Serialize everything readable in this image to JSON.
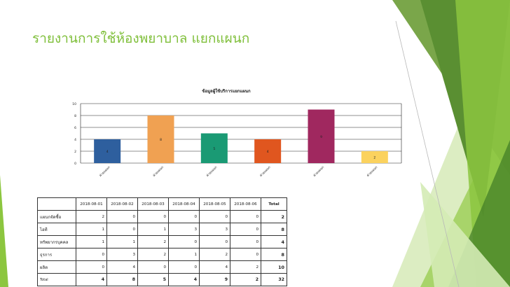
{
  "slide": {
    "title": "รายงานการใช้ห้องพยาบาล แยกแผนก"
  },
  "chart_data": {
    "type": "bar",
    "title": "ข้อมูลผู้ใช้บริการแยกแผนก",
    "categories": [
      "ฝ่ายแผนก",
      "ฝ่ายแผนก",
      "ฝ่ายแผนก",
      "ฝ่ายแผนก",
      "ฝ่ายแผนก",
      "ฝ่ายแผนก"
    ],
    "values": [
      4,
      8,
      5,
      4,
      9,
      2
    ],
    "colors": [
      "#2e5f9e",
      "#f0a152",
      "#1a9a74",
      "#e0561f",
      "#a0285f",
      "#fbd25e"
    ],
    "ylim": [
      0,
      10
    ],
    "yticks": [
      0,
      2,
      4,
      6,
      8,
      10
    ],
    "grid": true,
    "xlabel": "",
    "ylabel": ""
  },
  "table": {
    "headers": [
      "2018-08-01",
      "2018-08-02",
      "2018-08-03",
      "2018-08-04",
      "2018-08-05",
      "2018-08-06"
    ],
    "total_header": "Total",
    "rows": [
      {
        "label": "แผนกจัดซื้อ",
        "values": [
          "2",
          "0",
          "0",
          "0",
          "0",
          "0"
        ],
        "total": "2"
      },
      {
        "label": "ไอที",
        "values": [
          "1",
          "0",
          "1",
          "3",
          "3",
          "0"
        ],
        "total": "8"
      },
      {
        "label": "ทรัพยากรบุคคล",
        "values": [
          "1",
          "1",
          "2",
          "0",
          "0",
          "0"
        ],
        "total": "4"
      },
      {
        "label": "ธุรการ",
        "values": [
          "0",
          "3",
          "2",
          "1",
          "2",
          "0"
        ],
        "total": "8"
      },
      {
        "label": "ผลิต",
        "values": [
          "0",
          "4",
          "0",
          "0",
          "4",
          "2"
        ],
        "total": "10"
      }
    ],
    "total_row": {
      "label": "Total",
      "values": [
        "4",
        "8",
        "5",
        "4",
        "9",
        "2"
      ],
      "total": "32"
    }
  },
  "colors": {
    "title": "#7fbf3a",
    "green_light": "#c7e39a",
    "green_mid": "#8cc63f",
    "green_dark": "#4f8f2e"
  }
}
